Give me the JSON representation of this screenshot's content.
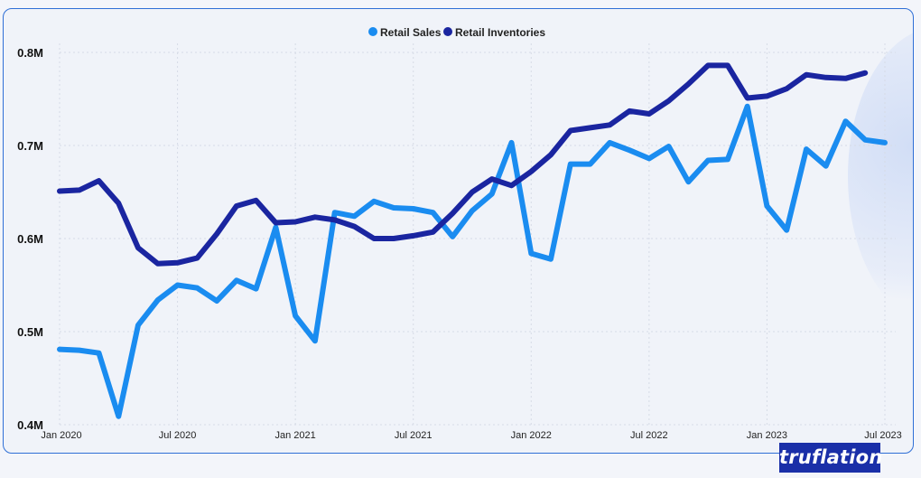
{
  "brand": {
    "name": "truflation"
  },
  "chart_data": {
    "type": "line",
    "title": "",
    "xlabel": "",
    "ylabel": "",
    "ylim": [
      0.4,
      0.8
    ],
    "y_ticks": [
      0.4,
      0.5,
      0.6,
      0.7,
      0.8
    ],
    "y_tick_labels": [
      "0.4M",
      "0.5M",
      "0.6M",
      "0.7M",
      "0.8M"
    ],
    "x_tick_labels": [
      "Jan 2020",
      "Jul 2020",
      "Jan 2021",
      "Jul 2021",
      "Jan 2022",
      "Jul 2022",
      "Jan 2023",
      "Jul 2023"
    ],
    "x_tick_index": [
      0,
      6,
      12,
      18,
      24,
      30,
      36,
      42
    ],
    "grid": true,
    "legend_position": "top-center",
    "months": [
      "2020-01",
      "2020-02",
      "2020-03",
      "2020-04",
      "2020-05",
      "2020-06",
      "2020-07",
      "2020-08",
      "2020-09",
      "2020-10",
      "2020-11",
      "2020-12",
      "2021-01",
      "2021-02",
      "2021-03",
      "2021-04",
      "2021-05",
      "2021-06",
      "2021-07",
      "2021-08",
      "2021-09",
      "2021-10",
      "2021-11",
      "2021-12",
      "2022-01",
      "2022-02",
      "2022-03",
      "2022-04",
      "2022-05",
      "2022-06",
      "2022-07",
      "2022-08",
      "2022-09",
      "2022-10",
      "2022-11",
      "2022-12",
      "2023-01",
      "2023-02",
      "2023-03",
      "2023-04",
      "2023-05",
      "2023-06",
      "2023-07"
    ],
    "series": [
      {
        "name": "Retail Sales",
        "color": "#1a8cf0",
        "values": [
          0.481,
          0.48,
          0.477,
          0.409,
          0.507,
          0.534,
          0.55,
          0.547,
          0.533,
          0.555,
          0.546,
          0.612,
          0.517,
          0.49,
          0.628,
          0.624,
          0.64,
          0.633,
          0.632,
          0.628,
          0.602,
          0.63,
          0.648,
          0.703,
          0.584,
          0.578,
          0.68,
          0.68,
          0.703,
          0.695,
          0.686,
          0.699,
          0.661,
          0.684,
          0.685,
          0.742,
          0.635,
          0.609,
          0.696,
          0.678,
          0.726,
          0.706,
          0.703
        ]
      },
      {
        "name": "Retail Inventories",
        "color": "#1a25a0",
        "values": [
          0.651,
          0.652,
          0.662,
          0.638,
          0.59,
          0.573,
          0.574,
          0.579,
          0.605,
          0.635,
          0.641,
          0.617,
          0.618,
          0.623,
          0.62,
          0.613,
          0.6,
          0.6,
          0.603,
          0.607,
          0.627,
          0.65,
          0.664,
          0.657,
          0.672,
          0.69,
          0.716,
          0.719,
          0.722,
          0.737,
          0.734,
          0.748,
          0.766,
          0.786,
          0.786,
          0.751,
          0.753,
          0.761,
          0.776,
          0.773,
          0.772,
          0.778
        ]
      }
    ]
  }
}
